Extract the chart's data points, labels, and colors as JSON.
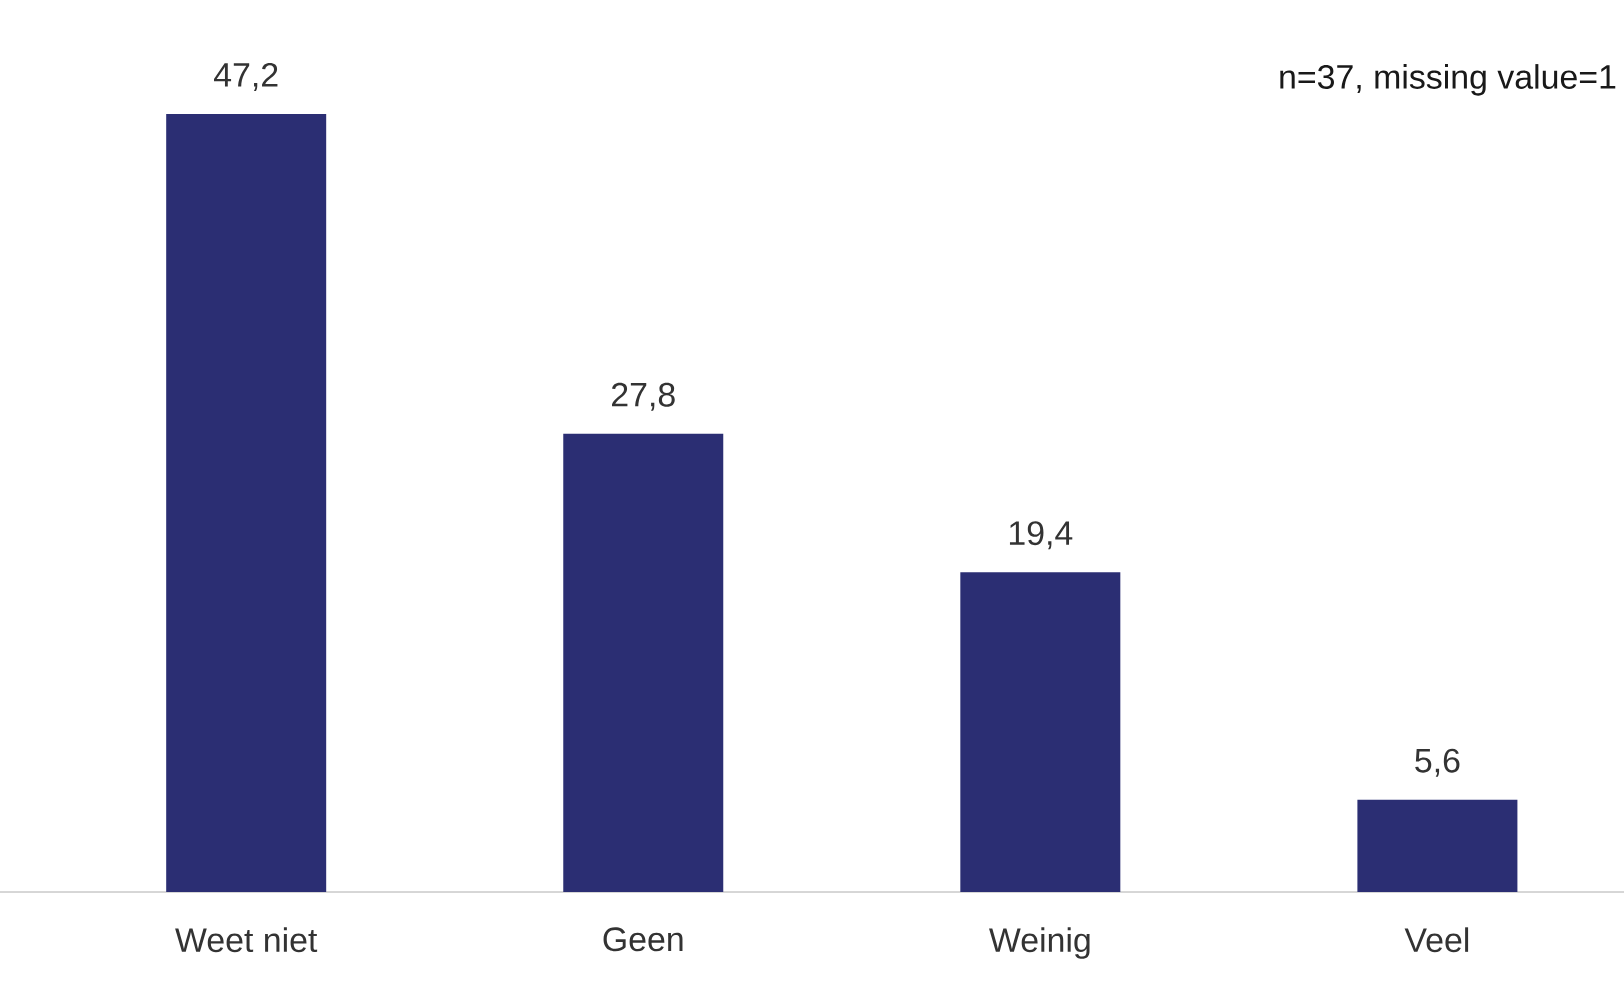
{
  "chart_data": {
    "type": "bar",
    "categories": [
      "Weet niet",
      "Geen",
      "Weinig",
      "Veel"
    ],
    "values": [
      47.2,
      27.8,
      19.4,
      5.6
    ],
    "value_labels": [
      "47,2",
      "27,8",
      "19,4",
      "5,6"
    ],
    "color": "#2b2e73",
    "annotations": [
      "n=37, missing value=1"
    ]
  }
}
